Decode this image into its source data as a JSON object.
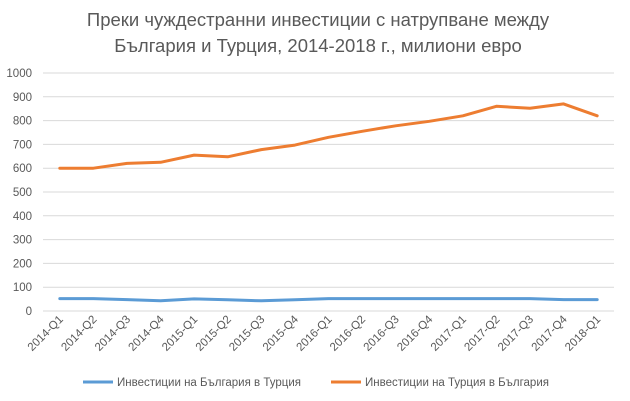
{
  "chart_data": {
    "type": "line",
    "title_lines": [
      "Преки чуждестранни инвестиции с натрупване между",
      "България и Турция, 2014-2018 г., милиони евро"
    ],
    "xlabel": "",
    "ylabel": "",
    "ylim": [
      0,
      1000
    ],
    "yticks": [
      0,
      100,
      200,
      300,
      400,
      500,
      600,
      700,
      800,
      900,
      1000
    ],
    "grid": true,
    "legend_position": "bottom",
    "categories": [
      "2014-Q1",
      "2014-Q2",
      "2014-Q3",
      "2014-Q4",
      "2015-Q1",
      "2015-Q2",
      "2015-Q3",
      "2015-Q4",
      "2016-Q1",
      "2016-Q2",
      "2016-Q3",
      "2016-Q4",
      "2017-Q1",
      "2017-Q2",
      "2017-Q3",
      "2017-Q4",
      "2018-Q1"
    ],
    "series": [
      {
        "name": "Инвестиции на България в Турция",
        "color": "#5B9BD5",
        "values": [
          52,
          52,
          48,
          43,
          51,
          47,
          43,
          47,
          52,
          52,
          52,
          52,
          52,
          52,
          52,
          48,
          48
        ]
      },
      {
        "name": "Инвестиции на Турция в България",
        "color": "#ED7D31",
        "values": [
          600,
          600,
          620,
          625,
          655,
          648,
          678,
          697,
          730,
          755,
          778,
          797,
          820,
          860,
          852,
          870,
          820
        ]
      }
    ]
  }
}
